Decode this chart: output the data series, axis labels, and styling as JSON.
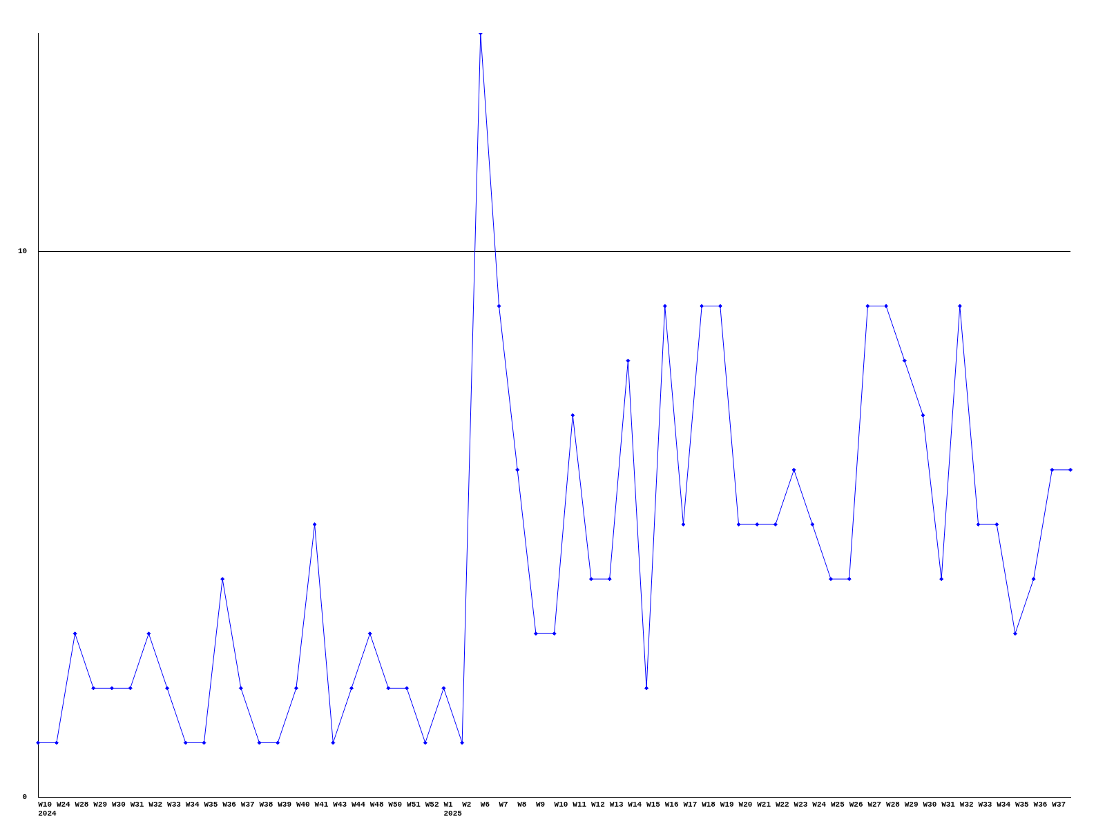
{
  "chart_data": {
    "type": "line",
    "categories": [
      "W10\n2024",
      "W24",
      "W28",
      "W29",
      "W30",
      "W31",
      "W32",
      "W33",
      "W34",
      "W35",
      "W36",
      "W37",
      "W38",
      "W39",
      "W40",
      "W41",
      "W43",
      "W44",
      "W48",
      "W50",
      "W51",
      "W52",
      "W1\n2025",
      "W2",
      "W6",
      "W7",
      "W8",
      "W9",
      "W10",
      "W11",
      "W12",
      "W13",
      "W14",
      "W15",
      "W16",
      "W17",
      "W18",
      "W19",
      "W20",
      "W21",
      "W22",
      "W23",
      "W24",
      "W25",
      "W26",
      "W27",
      "W28",
      "W29",
      "W30",
      "W31",
      "W32",
      "W33",
      "W34",
      "W35",
      "W36",
      "W37",
      null
    ],
    "series": [
      {
        "color": "#0000ff",
        "values": [
          1,
          1,
          3,
          2,
          2,
          2,
          3,
          2,
          1,
          1,
          4,
          2,
          1,
          1,
          2,
          5,
          1,
          2,
          3,
          2,
          2,
          1,
          2,
          1,
          14,
          9,
          6,
          3,
          3,
          7,
          4,
          4,
          8,
          2,
          9,
          5,
          9,
          9,
          5,
          5,
          5,
          6,
          5,
          4,
          4,
          9,
          9,
          8,
          7,
          4,
          9,
          5,
          5,
          3,
          4,
          6,
          6
        ]
      }
    ],
    "ylim": [
      0,
      14
    ],
    "yticks": [
      0,
      10
    ],
    "grid": "y",
    "marker": "diamond",
    "line_style": "solid"
  }
}
